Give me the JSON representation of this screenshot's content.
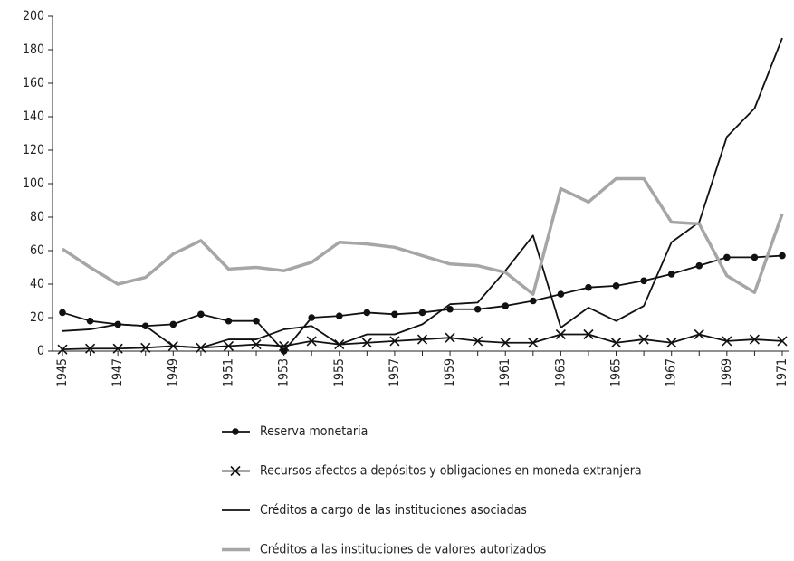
{
  "chart_data": {
    "type": "line",
    "categories": [
      "1945",
      null,
      "1947",
      null,
      "1949",
      null,
      "1951",
      null,
      "1953",
      null,
      "1955",
      null,
      "1957",
      null,
      "1959",
      null,
      "1961",
      null,
      "1963",
      null,
      "1965",
      null,
      "1967",
      null,
      "1969",
      null,
      "1971"
    ],
    "ylim": [
      0,
      200
    ],
    "yticks": [
      0,
      20,
      40,
      60,
      80,
      100,
      120,
      140,
      160,
      180,
      200
    ],
    "grid": false,
    "legend": "bottom",
    "series": [
      {
        "name": "Reserva monetaria",
        "color": "#111111",
        "marker": "circle",
        "values": [
          23,
          18,
          16,
          15,
          16,
          22,
          18,
          18,
          0,
          20,
          21,
          23,
          22,
          23,
          25,
          25,
          27,
          30,
          34,
          38,
          39,
          42,
          46,
          51,
          56,
          56,
          57
        ]
      },
      {
        "name": "Recursos afectos a depósitos y obligaciones en moneda extranjera",
        "color": "#111111",
        "marker": "x",
        "values": [
          1,
          1.5,
          1.5,
          2,
          3,
          2,
          3,
          4,
          3,
          6,
          4,
          5,
          6,
          7,
          8,
          6,
          5,
          5,
          10,
          10,
          5,
          7,
          5,
          10,
          6,
          7,
          6
        ]
      },
      {
        "name": "Créditos a cargo de las instituciones asociadas",
        "color": "#111111",
        "marker": "none",
        "values": [
          12,
          13,
          16,
          15,
          3,
          2,
          7,
          7,
          13,
          15,
          4,
          10,
          10,
          16,
          28,
          29,
          48,
          69,
          14,
          26,
          18,
          27,
          65,
          77,
          128,
          145,
          187
        ]
      },
      {
        "name": "Créditos a las instituciones de valores autorizados",
        "color": "#a6a6a6",
        "marker": "none",
        "values": [
          61,
          50,
          40,
          44,
          58,
          66,
          49,
          50,
          48,
          53,
          65,
          64,
          62,
          57,
          52,
          51,
          47,
          34,
          97,
          89,
          103,
          103,
          77,
          76,
          45,
          35,
          82
        ]
      }
    ]
  }
}
